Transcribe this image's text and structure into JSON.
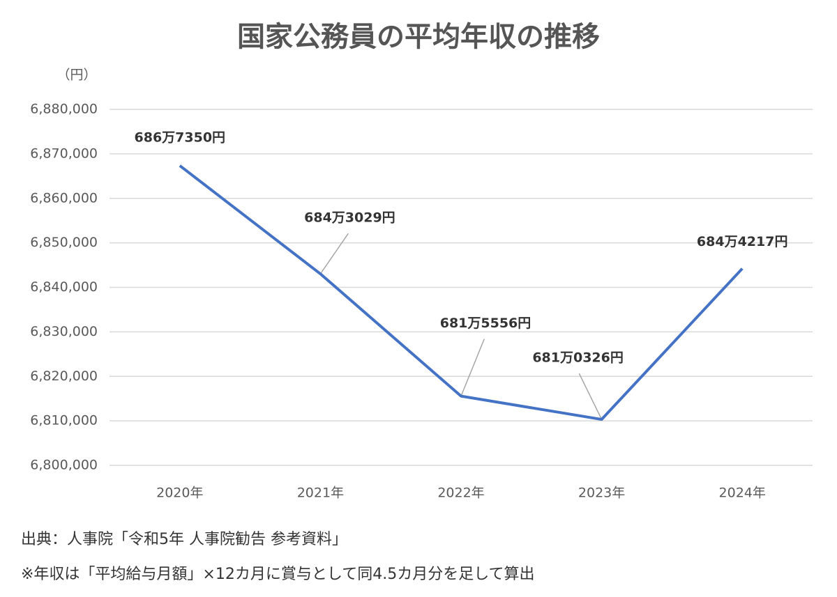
{
  "chart_data": {
    "type": "line",
    "title": "国家公務員の平均年収の推移",
    "y_axis_label": "（円）",
    "categories": [
      "2020年",
      "2021年",
      "2022年",
      "2023年",
      "2024年"
    ],
    "series": [
      {
        "name": "平均年収",
        "color": "#4472c4",
        "values": [
          6867350,
          6843029,
          6815556,
          6810326,
          6844217
        ],
        "value_labels": [
          "686万7350円",
          "684万3029円",
          "681万5556円",
          "681万0326円",
          "684万4217円"
        ]
      }
    ],
    "ylim": [
      6800000,
      6880000
    ],
    "yticks": [
      {
        "value": 6800000,
        "label": "6,800,000"
      },
      {
        "value": 6810000,
        "label": "6,810,000"
      },
      {
        "value": 6820000,
        "label": "6,820,000"
      },
      {
        "value": 6830000,
        "label": "6,830,000"
      },
      {
        "value": 6840000,
        "label": "6,840,000"
      },
      {
        "value": 6850000,
        "label": "6,850,000"
      },
      {
        "value": 6860000,
        "label": "6,860,000"
      },
      {
        "value": 6870000,
        "label": "6,870,000"
      },
      {
        "value": 6880000,
        "label": "6,880,000"
      }
    ],
    "grid": true,
    "notes": [
      "出典：人事院「令和5年 人事院勧告 参考資料」",
      "※年収は「平均給与月額」×12カ月に賞与として同4.5カ月分を足して算出"
    ]
  }
}
